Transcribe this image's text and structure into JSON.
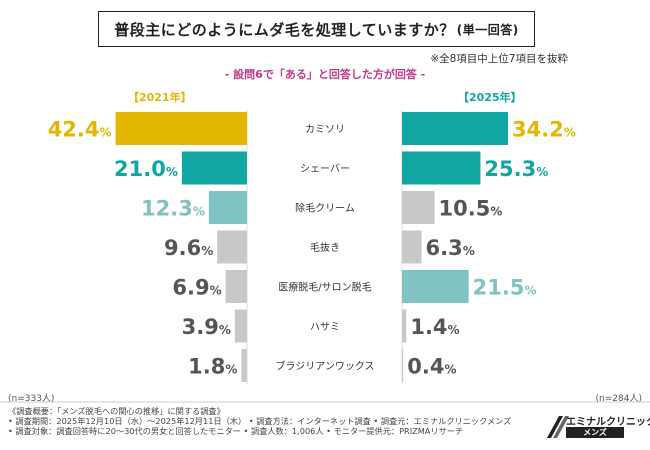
{
  "header": {
    "title": "普段主にどのようにムダ毛を処理していますか？",
    "title_suffix": "(単一回答)",
    "note": "※全8項目中上位7項目を抜粋",
    "subtitle": "- 設問6で「ある」と回答した方が回答 -"
  },
  "chart_data": {
    "type": "bar",
    "orientation": "horizontal-butterfly",
    "categories": [
      "カミソリ",
      "シェーバー",
      "除毛クリーム",
      "毛抜き",
      "医療脱毛/サロン脱毛",
      "ハサミ",
      "ブラジリアンワックス"
    ],
    "series": [
      {
        "name": "【2021年】",
        "values": [
          42.4,
          21.0,
          12.3,
          9.6,
          6.9,
          3.9,
          1.8
        ],
        "value_labels": [
          "42.4%",
          "21.0%",
          "12.3%",
          "9.6%",
          "6.9%",
          "3.9%",
          "1.8%"
        ],
        "n": "(n=333人)"
      },
      {
        "name": "【2025年】",
        "values": [
          34.2,
          25.3,
          10.5,
          6.3,
          21.5,
          1.4,
          0.4
        ],
        "value_labels": [
          "34.2%",
          "25.3%",
          "10.5%",
          "6.3%",
          "21.5%",
          "1.4%",
          "0.4%"
        ],
        "n": "(n=284人)"
      }
    ],
    "bar_colors": [
      "#e3b602",
      "#12a6a2",
      "#7fc4c2",
      "#c8c8c8",
      "#c8c8c8",
      "#c8c8c8",
      "#c8c8c8"
    ],
    "bar_colors_2025": [
      "#12a6a2",
      "#12a6a2",
      "#c8c8c8",
      "#c8c8c8",
      "#7fc4c2",
      "#c8c8c8",
      "#c8c8c8"
    ],
    "label_colors": [
      "#e3b602",
      "#12a6a2",
      "#7fc4c2",
      "#555555",
      "#555555",
      "#555555",
      "#555555"
    ],
    "label_colors_2025": [
      "#e3b602",
      "#12a6a2",
      "#555555",
      "#555555",
      "#7fc4c2",
      "#555555",
      "#555555"
    ],
    "year_colors": [
      "#e3b602",
      "#12a6a2"
    ],
    "xlim": [
      0,
      50
    ]
  },
  "footer": {
    "lines": [
      "《調査概要：「メンズ脱毛への関心の推移」に関する調査》",
      "• 調査期間：2025年12月10日（水）〜2025年12月11日（木）  • 調査方法：インターネット調査   • 調査元：エミナルクリニックメンズ",
      "• 調査対象：調査回答時に20〜30代の男女と回答したモニター   • 調査人数：1,006人    • モニター提供元：PRIZMAリサーチ"
    ]
  },
  "logo": {
    "name": "エミナルクリニック",
    "sub": "メンズ"
  }
}
